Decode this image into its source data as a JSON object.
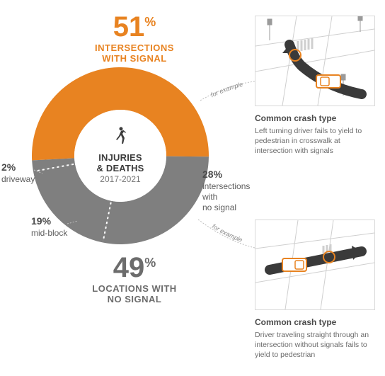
{
  "chart": {
    "type": "donut",
    "title_line1": "INJURIES",
    "title_line2": "& DEATHS",
    "years": "2017-2021",
    "icon_name": "pedestrian-icon",
    "colors": {
      "signal": "#e88321",
      "no_signal_intersection": "#7f7f7f",
      "midblock": "#7f7f7f",
      "driveway": "#7f7f7f",
      "inner_background": "#ffffff",
      "subslice_divider": "#ffffff",
      "dotted": "#cfcfcf"
    },
    "outer_radius": 125,
    "inner_radius": 65,
    "slices": [
      {
        "key": "signal",
        "value": 51,
        "label": ""
      },
      {
        "key": "no_signal_intersection",
        "value": 28,
        "label": "intersections\nwith\nno signal"
      },
      {
        "key": "midblock",
        "value": 19,
        "label": "mid-block"
      },
      {
        "key": "driveway",
        "value": 2,
        "label": "driveway"
      }
    ]
  },
  "headlines": {
    "top": {
      "percent": "51",
      "pct_sym": "%",
      "text": "INTERSECTIONS\nWITH SIGNAL",
      "color": "#e88321"
    },
    "bottom": {
      "percent": "49",
      "pct_sym": "%",
      "text": "LOCATIONS WITH\nNO SIGNAL",
      "color": "#6c6c6c"
    }
  },
  "labels": {
    "driveway": {
      "percent": "2%",
      "text": "driveway"
    },
    "midblock": {
      "percent": "19%",
      "text": "mid-block"
    },
    "nosignal": {
      "percent": "28%",
      "text": "intersections with\nno signal"
    }
  },
  "example_text": "for example",
  "panels": {
    "top": {
      "heading": "Common crash type",
      "desc": "Left turning driver fails to yield to pedestrian in crosswalk at intersection with signals",
      "illus_name": "left-turn-crash-illustration"
    },
    "bottom": {
      "heading": "Common crash type",
      "desc": "Driver traveling straight through an intersection without signals fails to yield to pedestrian",
      "illus_name": "straight-through-crash-illustration"
    }
  }
}
